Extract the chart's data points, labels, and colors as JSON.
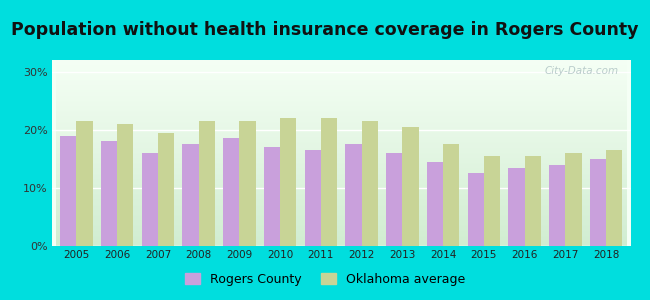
{
  "title": "Population without health insurance coverage in Rogers County",
  "years": [
    2005,
    2006,
    2007,
    2008,
    2009,
    2010,
    2011,
    2012,
    2013,
    2014,
    2015,
    2016,
    2017,
    2018
  ],
  "rogers_county": [
    19.0,
    18.0,
    16.0,
    17.5,
    18.5,
    17.0,
    16.5,
    17.5,
    16.0,
    14.5,
    12.5,
    13.5,
    14.0,
    15.0
  ],
  "oklahoma_avg": [
    21.5,
    21.0,
    19.5,
    21.5,
    21.5,
    22.0,
    22.0,
    21.5,
    20.5,
    17.5,
    15.5,
    15.5,
    16.0,
    16.5
  ],
  "rogers_color": "#c9a0dc",
  "oklahoma_color": "#c8d496",
  "background_outer": "#00dede",
  "yticks": [
    0,
    10,
    20,
    30
  ],
  "ylim": [
    0,
    32
  ],
  "bar_width": 0.4,
  "legend_labels": [
    "Rogers County",
    "Oklahoma average"
  ],
  "title_fontsize": 12.5,
  "watermark": "City-Data.com",
  "grad_top": "#f0fff0",
  "grad_bottom": "#c8e6c0"
}
